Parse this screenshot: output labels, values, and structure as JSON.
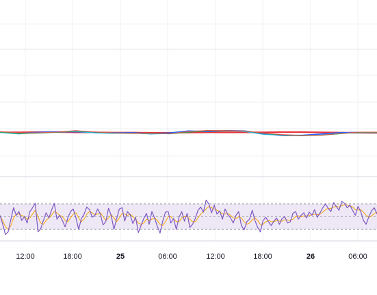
{
  "chart_data": [
    {
      "type": "line",
      "panel": "price",
      "title": "",
      "xlabel": "",
      "ylabel": "",
      "grid": true,
      "series": [
        {
          "color": "#e8343f",
          "values": [
            0.52,
            0.52,
            0.53,
            0.53,
            0.52,
            0.52,
            0.51,
            0.51,
            0.5,
            0.5,
            0.51,
            0.52,
            0.52,
            0.52,
            0.52,
            0.53,
            0.53,
            0.52,
            0.51,
            0.5,
            0.49
          ]
        },
        {
          "color": "#2962ff",
          "values": [
            0.52,
            0.48,
            0.52,
            0.54,
            0.55,
            0.51,
            0.5,
            0.5,
            0.46,
            0.49,
            0.58,
            0.56,
            0.6,
            0.58,
            0.45,
            0.38,
            0.38,
            0.44,
            0.5,
            0.52,
            0.52
          ]
        },
        {
          "color": "#26c6da",
          "values": [
            0.51,
            0.44,
            0.5,
            0.52,
            0.56,
            0.49,
            0.47,
            0.48,
            0.44,
            0.46,
            0.56,
            0.58,
            0.6,
            0.55,
            0.42,
            0.4,
            0.36,
            0.4,
            0.48,
            0.5,
            0.5
          ]
        },
        {
          "color": "#2f9e44",
          "values": [
            0.53,
            0.47,
            0.48,
            0.52,
            0.58,
            0.53,
            0.49,
            0.47,
            0.47,
            0.45,
            0.52,
            0.59,
            0.58,
            0.58,
            0.47,
            0.4,
            0.37,
            0.38,
            0.45,
            0.52,
            0.52
          ]
        },
        {
          "color": "#e0544b",
          "values": [
            0.55,
            0.5,
            0.5,
            0.53,
            0.6,
            0.54,
            0.5,
            0.48,
            0.48,
            0.46,
            0.56,
            0.61,
            0.6,
            0.58,
            0.48,
            0.42,
            0.38,
            0.39,
            0.46,
            0.53,
            0.53
          ]
        }
      ]
    },
    {
      "type": "line",
      "panel": "oscillator",
      "title": "",
      "xlabel": "",
      "ylabel": "",
      "grid": false,
      "band": {
        "upper": 70,
        "lower": 30
      },
      "ylim": [
        14,
        86
      ],
      "series": [
        {
          "color": "#7e57c2",
          "values": [
            52,
            38,
            22,
            26,
            46,
            64,
            52,
            58,
            44,
            50,
            40,
            58,
            64,
            71,
            26,
            31,
            44,
            56,
            48,
            60,
            71,
            46,
            52,
            44,
            34,
            48,
            58,
            62,
            48,
            30,
            47,
            54,
            65,
            61,
            49,
            52,
            62,
            54,
            37,
            42,
            63,
            52,
            30,
            47,
            62,
            64,
            43,
            58,
            53,
            39,
            49,
            25,
            36,
            47,
            55,
            38,
            58,
            48,
            35,
            24,
            43,
            57,
            58,
            40,
            47,
            30,
            49,
            58,
            43,
            55,
            33,
            38,
            47,
            60,
            65,
            57,
            76,
            70,
            56,
            68,
            54,
            59,
            46,
            62,
            53,
            48,
            40,
            52,
            58,
            36,
            29,
            42,
            46,
            60,
            44,
            33,
            26,
            44,
            49,
            42,
            36,
            43,
            48,
            38,
            47,
            50,
            40,
            42,
            55,
            58,
            46,
            52,
            56,
            48,
            57,
            52,
            61,
            49,
            56,
            64,
            70,
            63,
            58,
            72,
            66,
            60,
            74,
            71,
            64,
            68,
            60,
            52,
            66,
            58,
            44,
            38,
            50,
            59,
            64,
            54
          ]
        },
        {
          "color": "#f7a600",
          "values": [
            50,
            44,
            34,
            30,
            36,
            48,
            54,
            54,
            52,
            50,
            46,
            48,
            54,
            60,
            50,
            40,
            38,
            44,
            48,
            52,
            58,
            56,
            52,
            50,
            44,
            42,
            48,
            54,
            56,
            48,
            42,
            46,
            54,
            58,
            56,
            53,
            54,
            56,
            50,
            44,
            48,
            53,
            48,
            42,
            48,
            55,
            54,
            52,
            54,
            50,
            46,
            40,
            38,
            40,
            46,
            44,
            46,
            48,
            44,
            38,
            36,
            42,
            50,
            50,
            46,
            42,
            42,
            48,
            50,
            50,
            46,
            42,
            42,
            48,
            54,
            58,
            62,
            66,
            64,
            62,
            60,
            58,
            54,
            54,
            55,
            52,
            48,
            47,
            50,
            48,
            42,
            38,
            40,
            45,
            48,
            44,
            38,
            38,
            42,
            44,
            42,
            42,
            44,
            43,
            43,
            45,
            45,
            44,
            46,
            50,
            51,
            50,
            51,
            51,
            52,
            53,
            54,
            53,
            54,
            57,
            61,
            63,
            63,
            65,
            66,
            65,
            67,
            69,
            68,
            67,
            65,
            61,
            60,
            61,
            57,
            52,
            49,
            51,
            55,
            57
          ]
        }
      ]
    }
  ],
  "x_axis": {
    "ticks": [
      {
        "label": "12:00",
        "bold": false
      },
      {
        "label": "18:00",
        "bold": false
      },
      {
        "label": "25",
        "bold": true
      },
      {
        "label": "06:00",
        "bold": false
      },
      {
        "label": "12:00",
        "bold": false
      },
      {
        "label": "18:00",
        "bold": false
      },
      {
        "label": "26",
        "bold": true
      },
      {
        "label": "06:00",
        "bold": false
      }
    ]
  },
  "colors": {
    "grid": "#eef0f4",
    "separator": "#d1d4dc",
    "band_fill": "#ede7f6",
    "band_line": "#9598a1"
  }
}
